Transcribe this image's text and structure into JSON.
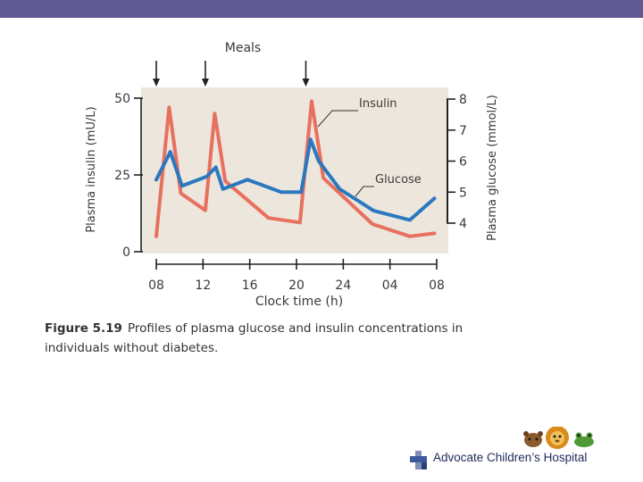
{
  "header": {
    "bar_color": "#5f5a93"
  },
  "annotations": {
    "meals_label": "Meals",
    "insulin_label": "Insulin",
    "glucose_label": "Glucose"
  },
  "caption": {
    "figure_label": "Figure 5.19",
    "text": "Profiles of plasma glucose and insulin concentrations in individuals without diabetes."
  },
  "logo": {
    "text": "Advocate Children’s Hospital",
    "icon": "cross-icon",
    "mascots_icon": "animal-mascots-icon"
  },
  "chart_data": {
    "type": "line",
    "xlabel": "Clock time (h)",
    "ylabel_left": "Plasma insulin (mU/L)",
    "ylabel_right": "Plasma glucose (mmol/L)",
    "x_ticks": [
      "08",
      "12",
      "16",
      "20",
      "24",
      "04",
      "08"
    ],
    "x_tick_hours": [
      0,
      4,
      8,
      12,
      16,
      20,
      24
    ],
    "y_left_ticks": [
      0,
      25,
      50
    ],
    "y_left_range": [
      0,
      50
    ],
    "y_right_ticks": [
      4,
      5,
      6,
      7,
      8
    ],
    "y_right_range": [
      4,
      8
    ],
    "meal_hours": [
      0,
      4.2,
      12.8
    ],
    "plot_background": "#ede6dc",
    "grid": false,
    "series": [
      {
        "name": "Insulin",
        "axis": "left",
        "color": "#e8705f",
        "points": [
          [
            0,
            5
          ],
          [
            1.1,
            47
          ],
          [
            2.1,
            19
          ],
          [
            4.2,
            13.5
          ],
          [
            5.0,
            45
          ],
          [
            5.9,
            23
          ],
          [
            9.6,
            11
          ],
          [
            12.3,
            9.5
          ],
          [
            13.3,
            49
          ],
          [
            14.3,
            24
          ],
          [
            18.5,
            9
          ],
          [
            21.7,
            5
          ],
          [
            23.8,
            6
          ]
        ]
      },
      {
        "name": "Glucose",
        "axis": "right",
        "color": "#2b78c0",
        "points": [
          [
            0,
            5.4
          ],
          [
            1.2,
            6.3
          ],
          [
            2.2,
            5.2
          ],
          [
            4.3,
            5.5
          ],
          [
            5.1,
            5.8
          ],
          [
            5.7,
            5.1
          ],
          [
            7.8,
            5.4
          ],
          [
            10.7,
            5.0
          ],
          [
            12.4,
            5.0
          ],
          [
            13.2,
            6.7
          ],
          [
            13.9,
            6.0
          ],
          [
            15.7,
            5.1
          ],
          [
            18.6,
            4.4
          ],
          [
            21.7,
            4.1
          ],
          [
            23.8,
            4.8
          ]
        ]
      }
    ]
  }
}
